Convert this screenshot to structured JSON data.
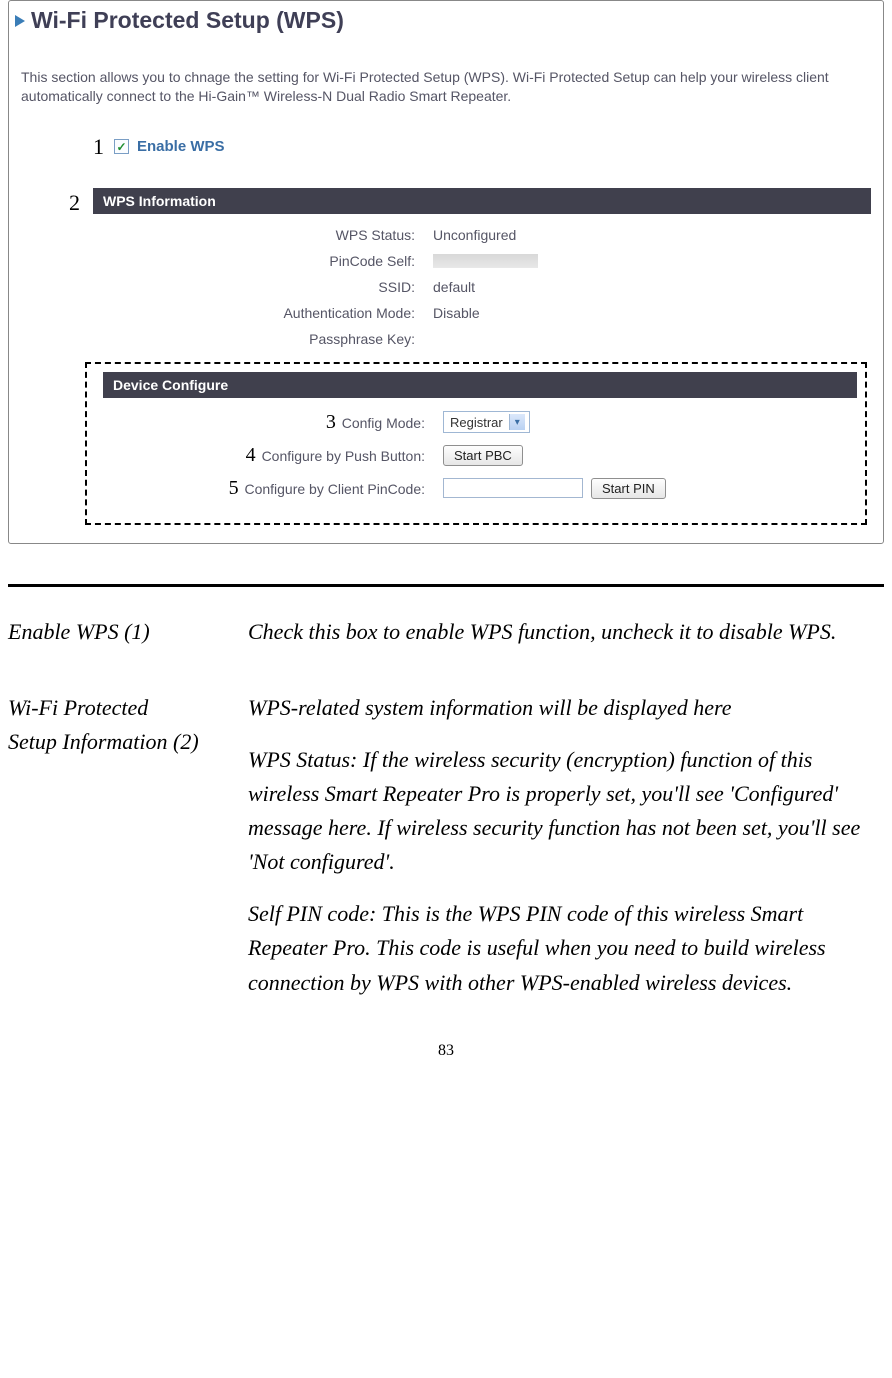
{
  "panel": {
    "title": "Wi-Fi Protected Setup (WPS)",
    "intro": "This section allows you to chnage the setting for Wi-Fi Protected Setup (WPS). Wi-Fi Protected Setup can help your wireless client automatically connect to the Hi-Gain™ Wireless-N Dual Radio Smart Repeater.",
    "enable": {
      "callout": "1",
      "label": "Enable WPS",
      "checked": true
    },
    "wps_info": {
      "callout": "2",
      "bar_label": "WPS Information",
      "rows": {
        "status_label": "WPS Status:",
        "status_value": "Unconfigured",
        "pin_label": "PinCode Self:",
        "ssid_label": "SSID:",
        "ssid_value": "default",
        "auth_label": "Authentication Mode:",
        "auth_value": "Disable",
        "pass_label": "Passphrase Key:"
      }
    },
    "device_cfg": {
      "bar_label": "Device Configure",
      "config_mode": {
        "callout": "3",
        "label": "Config Mode:",
        "value": "Registrar"
      },
      "push_button": {
        "callout": "4",
        "label": "Configure by Push Button:",
        "button": "Start PBC"
      },
      "client_pin": {
        "callout": "5",
        "label": "Configure by Client PinCode:",
        "button": "Start PIN"
      }
    }
  },
  "descriptions": {
    "row1_term": "Enable WPS (1)",
    "row1_def": "Check this box to enable WPS function, uncheck it to disable WPS.",
    "row2_term_l1": "Wi-Fi Protected",
    "row2_term_l2": "Setup Information (2)",
    "row2_def1": "WPS-related system information will be displayed here",
    "row2_def2": "WPS Status: If the wireless security (encryption) function of this wireless Smart Repeater Pro is properly set, you'll see 'Configured' message here. If wireless security function has not been set, you'll see 'Not configured'.",
    "row2_def3": "Self PIN code: This is the WPS PIN code of this wireless Smart Repeater Pro. This code is useful when you need to build wireless connection by WPS with other WPS-enabled wireless devices."
  },
  "page_number": "83",
  "colors": {
    "title_color": "#3f3f56",
    "link_color": "#3a6ea5",
    "section_bg": "#40404d",
    "section_fg": "#ffffff",
    "body_text": "#555565",
    "arrow_color": "#3a7db7"
  }
}
